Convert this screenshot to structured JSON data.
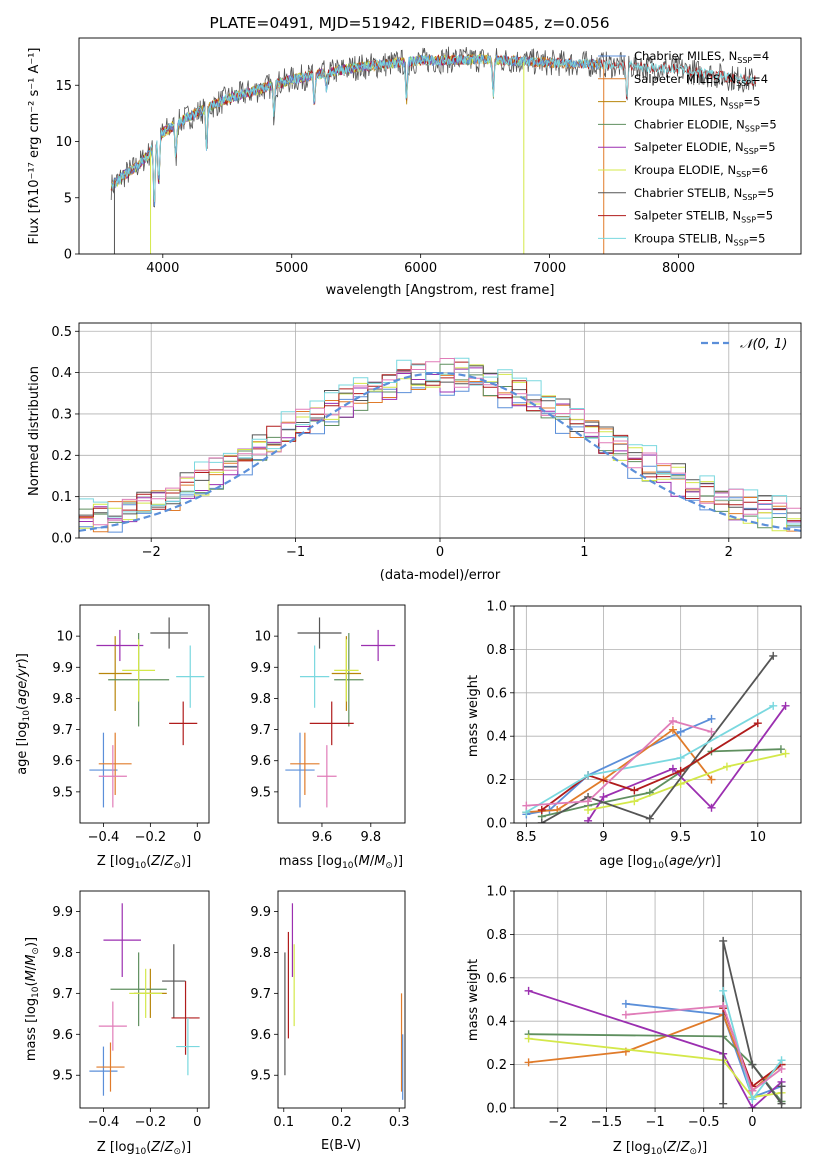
{
  "title": "PLATE=0491, MJD=51942, FIBERID=0485, z=0.056",
  "colors": {
    "Chabrier MILES": "#5b8fd9",
    "Salpeter MILES": "#e07b2a",
    "Kroupa MILES": "#b8860b",
    "Chabrier ELODIE": "#5f8f5f",
    "Salpeter ELODIE": "#9b2fb0",
    "Kroupa ELODIE": "#d4e84a",
    "Chabrier STELIB": "#555555",
    "Salpeter STELIB": "#b01c1c",
    "Kroupa STELIB": "#7ad8df",
    "pink": "#e07cb8",
    "gaussian": "#5b8fd9"
  },
  "chart_data": [
    {
      "type": "line",
      "title": "PLATE=0491, MJD=51942, FIBERID=0485, z=0.056",
      "xlabel": "wavelength [Angstrom, rest frame]",
      "ylabel": "Flux [fλ10⁻¹⁷ erg cm⁻² s⁻¹ A⁻¹]",
      "xlim": [
        3350,
        8950
      ],
      "ylim": [
        0,
        19.2
      ],
      "xticks": [
        4000,
        5000,
        6000,
        7000,
        8000
      ],
      "yticks": [
        0,
        5,
        10,
        15
      ],
      "legend_position": "top-right",
      "legend": [
        "Chabrier MILES, NSSP=4",
        "Salpeter MILES, NSSP=4",
        "Kroupa MILES, NSSP=5",
        "Chabrier ELODIE, NSSP=5",
        "Salpeter ELODIE, NSSP=5",
        "Kroupa ELODIE, NSSP=6",
        "Chabrier STELIB, NSSP=5",
        "Salpeter STELIB, NSSP=5",
        "Kroupa STELIB, NSSP=5"
      ],
      "continuum": {
        "x": [
          3600,
          3700,
          3800,
          3900,
          4000,
          4200,
          4500,
          5000,
          5500,
          6000,
          6500,
          7000,
          7500,
          8000,
          8500,
          8900
        ],
        "y": [
          6.0,
          7.0,
          7.8,
          9.0,
          10.8,
          12.2,
          13.8,
          15.5,
          16.6,
          17.2,
          17.3,
          17.0,
          16.8,
          16.4,
          15.5,
          15.2
        ]
      }
    },
    {
      "type": "bar",
      "xlabel": "(data-model)/error",
      "ylabel": "Normed distribution",
      "xlim": [
        -2.5,
        2.5
      ],
      "ylim": [
        0,
        0.52
      ],
      "xticks": [
        -2,
        -1,
        0,
        1,
        2
      ],
      "yticks": [
        0.0,
        0.1,
        0.2,
        0.3,
        0.4,
        0.5
      ],
      "grid": true,
      "legend": [
        "𝒩(0, 1)"
      ],
      "legend_position": "top-right",
      "bins": [
        -2.5,
        -2.4,
        -2.3,
        -2.2,
        -2.1,
        -2.0,
        -1.9,
        -1.8,
        -1.7,
        -1.6,
        -1.5,
        -1.4,
        -1.3,
        -1.2,
        -1.1,
        -1.0,
        -0.9,
        -0.8,
        -0.7,
        -0.6,
        -0.5,
        -0.4,
        -0.3,
        -0.2,
        -0.1,
        0.0,
        0.1,
        0.2,
        0.3,
        0.4,
        0.5,
        0.6,
        0.7,
        0.8,
        0.9,
        1.0,
        1.1,
        1.2,
        1.3,
        1.4,
        1.5,
        1.6,
        1.7,
        1.8,
        1.9,
        2.0,
        2.1,
        2.2,
        2.3,
        2.4,
        2.5
      ]
    },
    {
      "type": "scatter",
      "xlabel": "Z [log10(Z/Z⊙)]",
      "ylabel": "age  [log10(age/yr)]",
      "xlim": [
        -0.5,
        0.05
      ],
      "ylim": [
        9.4,
        10.1
      ],
      "xticks": [
        -0.4,
        -0.2,
        0.0
      ],
      "yticks": [
        9.5,
        9.6,
        9.7,
        9.8,
        9.9,
        10.0
      ],
      "points": [
        {
          "x": -0.4,
          "y": 9.57,
          "xerr": 0.06,
          "yerr": 0.12,
          "series": "Chabrier MILES"
        },
        {
          "x": -0.35,
          "y": 9.59,
          "xerr": 0.07,
          "yerr": 0.1,
          "series": "Salpeter MILES"
        },
        {
          "x": -0.35,
          "y": 9.88,
          "xerr": 0.07,
          "yerr": 0.12,
          "series": "Kroupa MILES"
        },
        {
          "x": -0.25,
          "y": 9.86,
          "xerr": 0.13,
          "yerr": 0.15,
          "series": "Chabrier ELODIE"
        },
        {
          "x": -0.33,
          "y": 9.97,
          "xerr": 0.1,
          "yerr": 0.05,
          "series": "Salpeter ELODIE"
        },
        {
          "x": -0.25,
          "y": 9.89,
          "xerr": 0.07,
          "yerr": 0.1,
          "series": "Kroupa ELODIE"
        },
        {
          "x": -0.12,
          "y": 10.01,
          "xerr": 0.08,
          "yerr": 0.05,
          "series": "Chabrier STELIB"
        },
        {
          "x": -0.06,
          "y": 9.72,
          "xerr": 0.06,
          "yerr": 0.07,
          "series": "Salpeter STELIB"
        },
        {
          "x": -0.03,
          "y": 9.87,
          "xerr": 0.06,
          "yerr": 0.1,
          "series": "Kroupa STELIB"
        },
        {
          "x": -0.36,
          "y": 9.55,
          "xerr": 0.06,
          "yerr": 0.1,
          "series": "pink"
        }
      ]
    },
    {
      "type": "scatter",
      "xlabel": "mass [log10(M/M⊙)]",
      "ylabel": "",
      "xlim": [
        9.42,
        9.94
      ],
      "ylim": [
        9.4,
        10.1
      ],
      "xticks": [
        9.6,
        9.8
      ],
      "yticks": [
        9.5,
        9.6,
        9.7,
        9.8,
        9.9,
        10.0
      ],
      "points": [
        {
          "x": 9.51,
          "y": 9.57,
          "xerr": 0.06,
          "yerr": 0.12,
          "series": "Chabrier MILES"
        },
        {
          "x": 9.53,
          "y": 9.59,
          "xerr": 0.06,
          "yerr": 0.1,
          "series": "Salpeter MILES"
        },
        {
          "x": 9.7,
          "y": 9.88,
          "xerr": 0.06,
          "yerr": 0.12,
          "series": "Kroupa MILES"
        },
        {
          "x": 9.71,
          "y": 9.86,
          "xerr": 0.06,
          "yerr": 0.15,
          "series": "Chabrier ELODIE"
        },
        {
          "x": 9.83,
          "y": 9.97,
          "xerr": 0.07,
          "yerr": 0.05,
          "series": "Salpeter ELODIE"
        },
        {
          "x": 9.7,
          "y": 9.89,
          "xerr": 0.05,
          "yerr": 0.1,
          "series": "Kroupa ELODIE"
        },
        {
          "x": 9.59,
          "y": 10.01,
          "xerr": 0.09,
          "yerr": 0.05,
          "series": "Chabrier STELIB"
        },
        {
          "x": 9.64,
          "y": 9.72,
          "xerr": 0.09,
          "yerr": 0.07,
          "series": "Salpeter STELIB"
        },
        {
          "x": 9.57,
          "y": 9.87,
          "xerr": 0.06,
          "yerr": 0.1,
          "series": "Kroupa STELIB"
        },
        {
          "x": 9.62,
          "y": 9.55,
          "xerr": 0.04,
          "yerr": 0.1,
          "series": "pink"
        }
      ]
    },
    {
      "type": "line",
      "xlabel": "age  [log10(age/yr)]",
      "ylabel": "mass weight",
      "xlim": [
        8.42,
        10.28
      ],
      "ylim": [
        0,
        1.0
      ],
      "xticks": [
        8.5,
        9.0,
        9.5,
        10.0
      ],
      "yticks": [
        0.0,
        0.2,
        0.4,
        0.6,
        0.8,
        1.0
      ],
      "grid": true,
      "series": [
        {
          "color": "Chabrier MILES",
          "x": [
            8.5,
            8.65,
            8.9,
            9.5,
            9.7
          ],
          "y": [
            0.04,
            0.06,
            0.22,
            0.42,
            0.48
          ]
        },
        {
          "color": "Salpeter MILES",
          "x": [
            8.5,
            8.7,
            9.0,
            9.45,
            9.7
          ],
          "y": [
            0.05,
            0.06,
            0.2,
            0.43,
            0.2
          ]
        },
        {
          "color": "Chabrier ELODIE",
          "x": [
            8.6,
            8.9,
            9.3,
            9.7,
            10.15
          ],
          "y": [
            0.03,
            0.08,
            0.14,
            0.33,
            0.34
          ]
        },
        {
          "color": "Salpeter ELODIE",
          "x": [
            8.9,
            9.0,
            9.45,
            9.7,
            10.18
          ],
          "y": [
            0.01,
            0.12,
            0.25,
            0.07,
            0.54
          ]
        },
        {
          "color": "Kroupa ELODIE",
          "x": [
            8.9,
            9.2,
            9.5,
            9.8,
            10.18
          ],
          "y": [
            0.06,
            0.1,
            0.18,
            0.26,
            0.32
          ]
        },
        {
          "color": "Chabrier STELIB",
          "x": [
            8.6,
            8.9,
            9.3,
            10.1
          ],
          "y": [
            0.0,
            0.12,
            0.02,
            0.77
          ]
        },
        {
          "color": "Salpeter STELIB",
          "x": [
            8.6,
            8.9,
            9.2,
            9.5,
            10.0
          ],
          "y": [
            0.06,
            0.22,
            0.15,
            0.24,
            0.46
          ]
        },
        {
          "color": "Kroupa STELIB",
          "x": [
            8.5,
            8.9,
            9.5,
            10.1
          ],
          "y": [
            0.05,
            0.22,
            0.3,
            0.54
          ]
        },
        {
          "color": "pink",
          "x": [
            8.5,
            8.9,
            9.45,
            9.7
          ],
          "y": [
            0.08,
            0.1,
            0.47,
            0.42
          ]
        }
      ]
    },
    {
      "type": "scatter",
      "xlabel": "Z [log10(Z/Z⊙)]",
      "ylabel": "mass [log10(M/M⊙)]",
      "xlim": [
        -0.5,
        0.05
      ],
      "ylim": [
        9.42,
        9.95
      ],
      "xticks": [
        -0.4,
        -0.2,
        0.0
      ],
      "yticks": [
        9.5,
        9.6,
        9.7,
        9.8,
        9.9
      ],
      "points": [
        {
          "x": -0.4,
          "y": 9.51,
          "xerr": 0.06,
          "yerr": 0.06,
          "series": "Chabrier MILES"
        },
        {
          "x": -0.37,
          "y": 9.52,
          "xerr": 0.06,
          "yerr": 0.06,
          "series": "Salpeter MILES"
        },
        {
          "x": -0.2,
          "y": 9.7,
          "xerr": 0.07,
          "yerr": 0.06,
          "series": "Kroupa MILES"
        },
        {
          "x": -0.25,
          "y": 9.71,
          "xerr": 0.12,
          "yerr": 0.09,
          "series": "Chabrier ELODIE"
        },
        {
          "x": -0.32,
          "y": 9.83,
          "xerr": 0.08,
          "yerr": 0.09,
          "series": "Salpeter ELODIE"
        },
        {
          "x": -0.22,
          "y": 9.7,
          "xerr": 0.07,
          "yerr": 0.06,
          "series": "Kroupa ELODIE"
        },
        {
          "x": -0.1,
          "y": 9.73,
          "xerr": 0.05,
          "yerr": 0.09,
          "series": "Chabrier STELIB"
        },
        {
          "x": -0.05,
          "y": 9.64,
          "xerr": 0.06,
          "yerr": 0.09,
          "series": "Salpeter STELIB"
        },
        {
          "x": -0.04,
          "y": 9.57,
          "xerr": 0.05,
          "yerr": 0.07,
          "series": "Kroupa STELIB"
        },
        {
          "x": -0.36,
          "y": 9.62,
          "xerr": 0.06,
          "yerr": 0.06,
          "series": "pink"
        }
      ]
    },
    {
      "type": "scatter",
      "xlabel": "E(B-V)",
      "ylabel": "",
      "xlim": [
        0.09,
        0.31
      ],
      "ylim": [
        9.42,
        9.95
      ],
      "xticks": [
        0.1,
        0.2,
        0.3
      ],
      "yticks": [
        9.5,
        9.6,
        9.7,
        9.8,
        9.9
      ],
      "points": [
        {
          "x": 0.102,
          "y": 9.65,
          "xerr": 0,
          "yerr": 0.15,
          "series": "Chabrier STELIB"
        },
        {
          "x": 0.108,
          "y": 9.72,
          "xerr": 0,
          "yerr": 0.13,
          "series": "Salpeter STELIB"
        },
        {
          "x": 0.115,
          "y": 9.83,
          "xerr": 0,
          "yerr": 0.09,
          "series": "Salpeter ELODIE"
        },
        {
          "x": 0.118,
          "y": 9.72,
          "xerr": 0,
          "yerr": 0.1,
          "series": "Kroupa ELODIE"
        },
        {
          "x": 0.304,
          "y": 9.58,
          "xerr": 0,
          "yerr": 0.12,
          "series": "Salpeter MILES"
        },
        {
          "x": 0.306,
          "y": 9.52,
          "xerr": 0,
          "yerr": 0.08,
          "series": "Chabrier MILES"
        }
      ]
    },
    {
      "type": "line",
      "xlabel": "Z [log10(Z/Z⊙)]",
      "ylabel": "mass weight",
      "xlim": [
        -2.45,
        0.5
      ],
      "ylim": [
        0,
        1.0
      ],
      "xticks": [
        -2.0,
        -1.5,
        -1.0,
        -0.5,
        0.0
      ],
      "yticks": [
        0.0,
        0.2,
        0.4,
        0.6,
        0.8,
        1.0
      ],
      "grid": true,
      "series": [
        {
          "color": "Chabrier MILES",
          "x": [
            -1.3,
            -0.3,
            0.0,
            0.3
          ],
          "y": [
            0.48,
            0.43,
            0.05,
            0.1
          ]
        },
        {
          "color": "Salpeter MILES",
          "x": [
            -2.3,
            -1.3,
            -0.3,
            0.0,
            0.3
          ],
          "y": [
            0.21,
            0.26,
            0.43,
            0.08,
            0.2
          ]
        },
        {
          "color": "Chabrier ELODIE",
          "x": [
            -2.3,
            -0.3,
            0.0,
            0.3
          ],
          "y": [
            0.34,
            0.33,
            0.2,
            0.03
          ]
        },
        {
          "color": "Salpeter ELODIE",
          "x": [
            -2.3,
            -0.3,
            0.0,
            0.3
          ],
          "y": [
            0.54,
            0.25,
            0.0,
            0.12
          ]
        },
        {
          "color": "Kroupa ELODIE",
          "x": [
            -2.3,
            -0.3,
            0.0,
            0.3
          ],
          "y": [
            0.32,
            0.22,
            0.05,
            0.07
          ]
        },
        {
          "color": "Chabrier STELIB",
          "x": [
            -0.3,
            -0.3,
            0.0,
            0.3,
            0.3
          ],
          "y": [
            0.02,
            0.77,
            0.2,
            0.02,
            0.1
          ]
        },
        {
          "color": "Salpeter STELIB",
          "x": [
            -0.3,
            0.0,
            0.3
          ],
          "y": [
            0.46,
            0.1,
            0.2
          ]
        },
        {
          "color": "Kroupa STELIB",
          "x": [
            -0.3,
            0.0,
            0.3
          ],
          "y": [
            0.54,
            0.04,
            0.22
          ]
        },
        {
          "color": "pink",
          "x": [
            -1.3,
            -0.3,
            0.0,
            0.3
          ],
          "y": [
            0.43,
            0.47,
            0.08,
            0.18
          ]
        }
      ]
    }
  ]
}
